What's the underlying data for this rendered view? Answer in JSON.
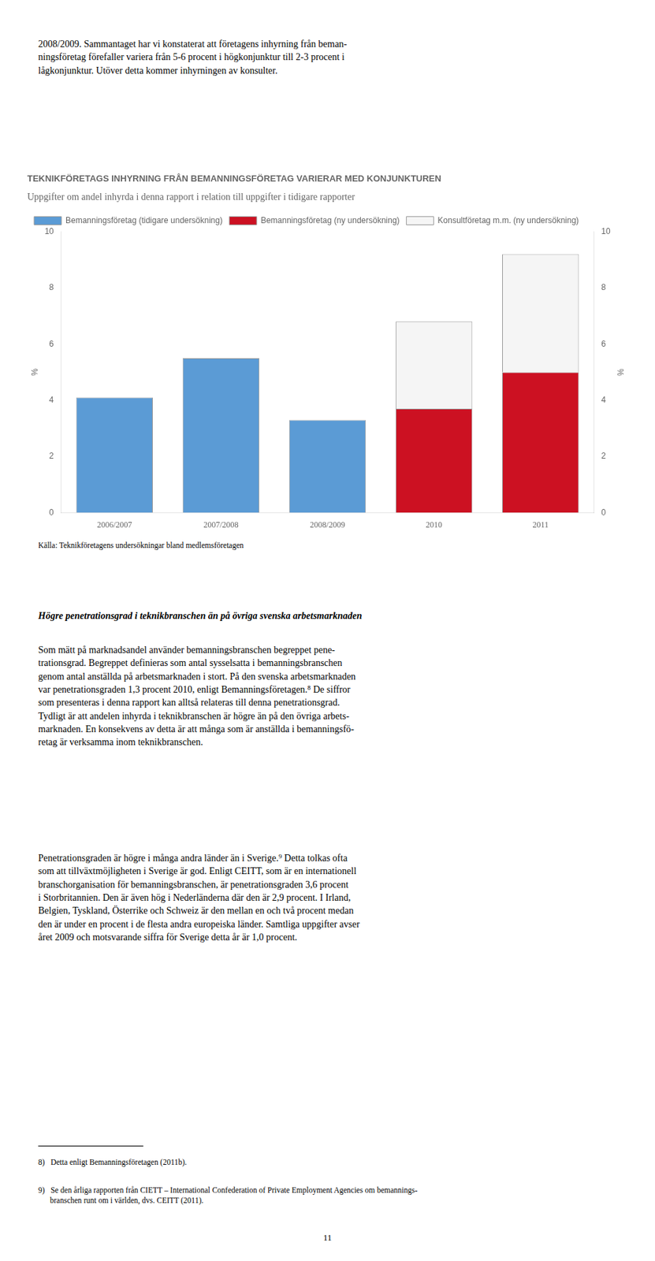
{
  "intro_text": "2008/2009. Sammantaget har vi konstaterat att företagens inhyrning från beman-\nningsföretag förefaller variera från 5-6 procent i högkonjunktur till 2-3 procent i\nlågkonjunktur. Utöver detta kommer inhyrningen av konsulter.",
  "chart_data": {
    "type": "bar",
    "title": "TEKNIKFÖRETAGS INHYRNING FRÅN BEMANNINGSFÖRETAG VARIERAR MED KONJUNKTUREN",
    "subtitle": "Uppgifter om andel inhyrda i denna rapport i relation till uppgifter i tidigare rapporter",
    "source": "Källa: Teknikföretagens undersökningar bland medlemsföretagen",
    "categories": [
      "2006/2007",
      "2007/2008",
      "2008/2009",
      "2010",
      "2011"
    ],
    "series": [
      {
        "name": "Bemanningsföretag (tidigare undersökning)",
        "color": "#5b9bd5",
        "values": [
          4.1,
          5.5,
          3.3,
          null,
          null
        ]
      },
      {
        "name": "Bemanningsföretag (ny undersökning)",
        "color": "#cc1122",
        "values": [
          null,
          null,
          null,
          3.7,
          5.0
        ]
      },
      {
        "name": "Konsultföretag m.m. (ny undersökning)",
        "color": "#f5f5f5",
        "values": [
          null,
          null,
          null,
          3.1,
          4.2
        ]
      }
    ],
    "stacked": true,
    "y_label": "%",
    "ylim": [
      0,
      10
    ],
    "yticks": [
      0,
      2,
      4,
      6,
      8,
      10
    ],
    "y2_label": "%",
    "y2lim": [
      0,
      10
    ],
    "y2ticks": [
      0,
      2,
      4,
      6,
      8,
      10
    ],
    "grid": false,
    "legend": "upper left"
  },
  "body_heading": "Högre penetrationsgrad i teknikbranschen än på övriga svenska arbetsmarknaden",
  "body_para1": "Som mätt på marknadsandel använder bemanningsbranschen begreppet pene-\ntrationsgrad. Begreppet definieras som antal sysselsatta i bemanningsbranschen\ngenom antal anställda på arbetsmarknaden i stort. På den svenska arbetsmarknaden\nvar penetrationsgraden 1,3 procent 2010, enligt Bemanningsföretagen.⁸ De siffror\nsom presenteras i denna rapport kan alltså relateras till denna penetrationsgrad.\nTydligt är att andelen inhyrda i teknikbranschen är högre än på den övriga arbets-\nmarknaden. En konsekvens av detta är att många som är anställda i bemanningsfö-\nretag är verksamma inom teknikbranschen.",
  "body_para2": "Penetrationsgraden är högre i många andra länder än i Sverige.⁹ Detta tolkas ofta\nsom att tillväxtmöjligheten i Sverige är god. Enligt CEITT, som är en internationell\nbranschorganisation för bemanningsbranschen, är penetrationsgraden 3,6 procent\ni Storbritannien. Den är även hög i Nederländerna där den är 2,9 procent. I Irland,\nBelgien, Tyskland, Österrike och Schweiz är den mellan en och två procent medan\nden är under en procent i de flesta andra europeiska länder. Samtliga uppgifter avser\nåret 2009 och motsvarande siffra för Sverige detta år är 1,0 procent.",
  "footnote1": "8)  Detta enligt Bemanningsföretagen (2011b).",
  "footnote2": "9)  Se den årliga rapporten från CIETT – International Confederation of Private Employment Agencies om bemannings-\n      branschen runt om i världen, dvs. CEITT (2011).",
  "page_number": "11"
}
